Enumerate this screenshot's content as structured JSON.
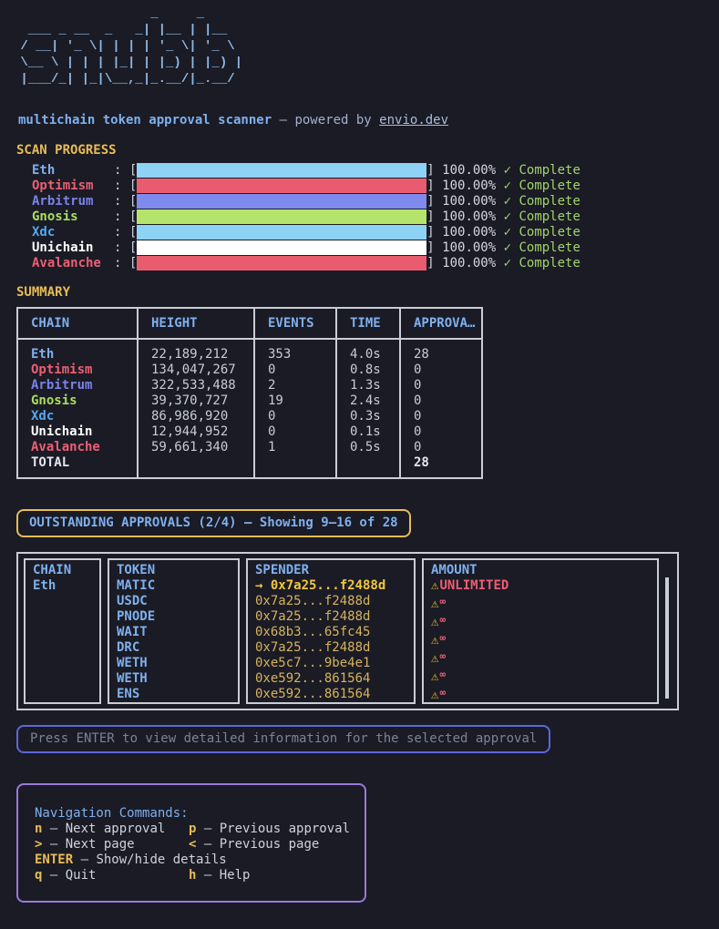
{
  "header": {
    "logo_lines": [
      "                  _     _     ",
      "  ___ _ __  _   _| |__ | |__  ",
      " / __| '_ \\| | | | '_ \\| '_ \\ ",
      " \\__ \\ | | | |_| | |_) | |_) |",
      " |___/_| |_|\\__,_|_.__/|_.__/ "
    ],
    "logo_name": "snubb",
    "title": "multichain token approval scanner",
    "powered_by": " — powered by ",
    "link": "envio.dev"
  },
  "icons": {
    "check": "✓",
    "warning": "⚠",
    "selected_arrow": "→",
    "infinity": "∞"
  },
  "scan_progress": {
    "title": "SCAN PROGRESS",
    "bracket_open": ": [",
    "bracket_close": "] ",
    "chains": [
      {
        "name": "Eth",
        "color": "#7fb0ee",
        "bar_color": "#8ed2f6",
        "percent": "100.00%",
        "status": " ✓ Complete"
      },
      {
        "name": "Optimism",
        "color": "#ec5f74",
        "bar_color": "#e95c6f",
        "percent": "100.00%",
        "status": " ✓ Complete"
      },
      {
        "name": "Arbitrum",
        "color": "#7b82e8",
        "bar_color": "#7e8aec",
        "percent": "100.00%",
        "status": " ✓ Complete"
      },
      {
        "name": "Gnosis",
        "color": "#aadf5e",
        "bar_color": "#b4e46a",
        "percent": "100.00%",
        "status": " ✓ Complete"
      },
      {
        "name": "Xdc",
        "color": "#55a8f0",
        "bar_color": "#8ed2f6",
        "percent": "100.00%",
        "status": " ✓ Complete"
      },
      {
        "name": "Unichain",
        "color": "#ffffff",
        "bar_color": "#ffffff",
        "percent": "100.00%",
        "status": " ✓ Complete"
      },
      {
        "name": "Avalanche",
        "color": "#ec5f74",
        "bar_color": "#e95c6f",
        "percent": "100.00%",
        "status": " ✓ Complete"
      }
    ]
  },
  "summary": {
    "title": "SUMMARY",
    "columns": [
      "CHAIN",
      "HEIGHT",
      "EVENTS",
      "TIME",
      "APPROVA…"
    ],
    "rows": [
      {
        "chain": "Eth",
        "color": "#7fb0ee",
        "height": "22,189,212",
        "events": "353",
        "time": "4.0s",
        "approvals": "28",
        "bold": false
      },
      {
        "chain": "Optimism",
        "color": "#ec5f74",
        "height": "134,047,267",
        "events": "0",
        "time": "0.8s",
        "approvals": "0",
        "bold": false
      },
      {
        "chain": "Arbitrum",
        "color": "#7b82e8",
        "height": "322,533,488",
        "events": "2",
        "time": "1.3s",
        "approvals": "0",
        "bold": false
      },
      {
        "chain": "Gnosis",
        "color": "#aadf5e",
        "height": "39,370,727",
        "events": "19",
        "time": "2.4s",
        "approvals": "0",
        "bold": false
      },
      {
        "chain": "Xdc",
        "color": "#55a8f0",
        "height": "86,986,920",
        "events": "0",
        "time": "0.3s",
        "approvals": "0",
        "bold": false
      },
      {
        "chain": "Unichain",
        "color": "#ffffff",
        "height": "12,944,952",
        "events": "0",
        "time": "0.1s",
        "approvals": "0",
        "bold": false
      },
      {
        "chain": "Avalanche",
        "color": "#ec5f74",
        "height": "59,661,340",
        "events": "1",
        "time": "0.5s",
        "approvals": "0",
        "bold": false
      },
      {
        "chain": "TOTAL",
        "color": "#e4e5ee",
        "height": "",
        "events": "",
        "time": "",
        "approvals": "28",
        "bold": true
      }
    ]
  },
  "approvals": {
    "header": "OUTSTANDING APPROVALS (2/4) — Showing 9–16 of 28",
    "columns": [
      "CHAIN",
      "TOKEN",
      "SPENDER",
      "AMOUNT"
    ],
    "rows": [
      {
        "chain": "Eth",
        "token": "MATIC",
        "spender": "0x7a25...f2488d",
        "amount": "UNLIMITED",
        "selected": true
      },
      {
        "chain": "",
        "token": "USDC",
        "spender": "0x7a25...f2488d",
        "amount": "∞",
        "selected": false
      },
      {
        "chain": "",
        "token": "PNODE",
        "spender": "0x7a25...f2488d",
        "amount": "∞",
        "selected": false
      },
      {
        "chain": "",
        "token": "WAIT",
        "spender": "0x68b3...65fc45",
        "amount": "∞",
        "selected": false
      },
      {
        "chain": "",
        "token": "DRC",
        "spender": "0x7a25...f2488d",
        "amount": "∞",
        "selected": false
      },
      {
        "chain": "",
        "token": "WETH",
        "spender": "0xe5c7...9be4e1",
        "amount": "∞",
        "selected": false
      },
      {
        "chain": "",
        "token": "WETH",
        "spender": "0xe592...861564",
        "amount": "∞",
        "selected": false
      },
      {
        "chain": "",
        "token": "ENS",
        "spender": "0xe592...861564",
        "amount": "∞",
        "selected": false
      }
    ]
  },
  "hint_bar": "Press ENTER to view detailed information for the selected approval",
  "nav": {
    "title": "Navigation Commands:",
    "rows": [
      [
        {
          "key": "n",
          "label": "– Next approval"
        },
        {
          "key": "p",
          "label": "– Previous approval"
        }
      ],
      [
        {
          "key": ">",
          "label": "– Next page"
        },
        {
          "key": "<",
          "label": "– Previous page"
        }
      ],
      [
        {
          "key": "ENTER",
          "label": "– Show/hide details"
        }
      ],
      [
        {
          "key": "q",
          "label": "– Quit"
        },
        {
          "key": "h",
          "label": "– Help"
        }
      ]
    ]
  },
  "colors": {
    "background": "#1a1b25",
    "blue": "#7fb0ee",
    "logo_blue": "#8cb9e8",
    "yellow": "#e8bb56",
    "green": "#a3d46a",
    "red": "#ee5d72",
    "gold": "#d7b35c",
    "gold_selected": "#f3c63e",
    "warning_yellow": "#f2c531",
    "text": "#c9cbd6",
    "border": "#caccd6",
    "hint_border": "#5c68d8",
    "hint_text": "#7d8296",
    "nav_border": "#9a7ad8"
  }
}
